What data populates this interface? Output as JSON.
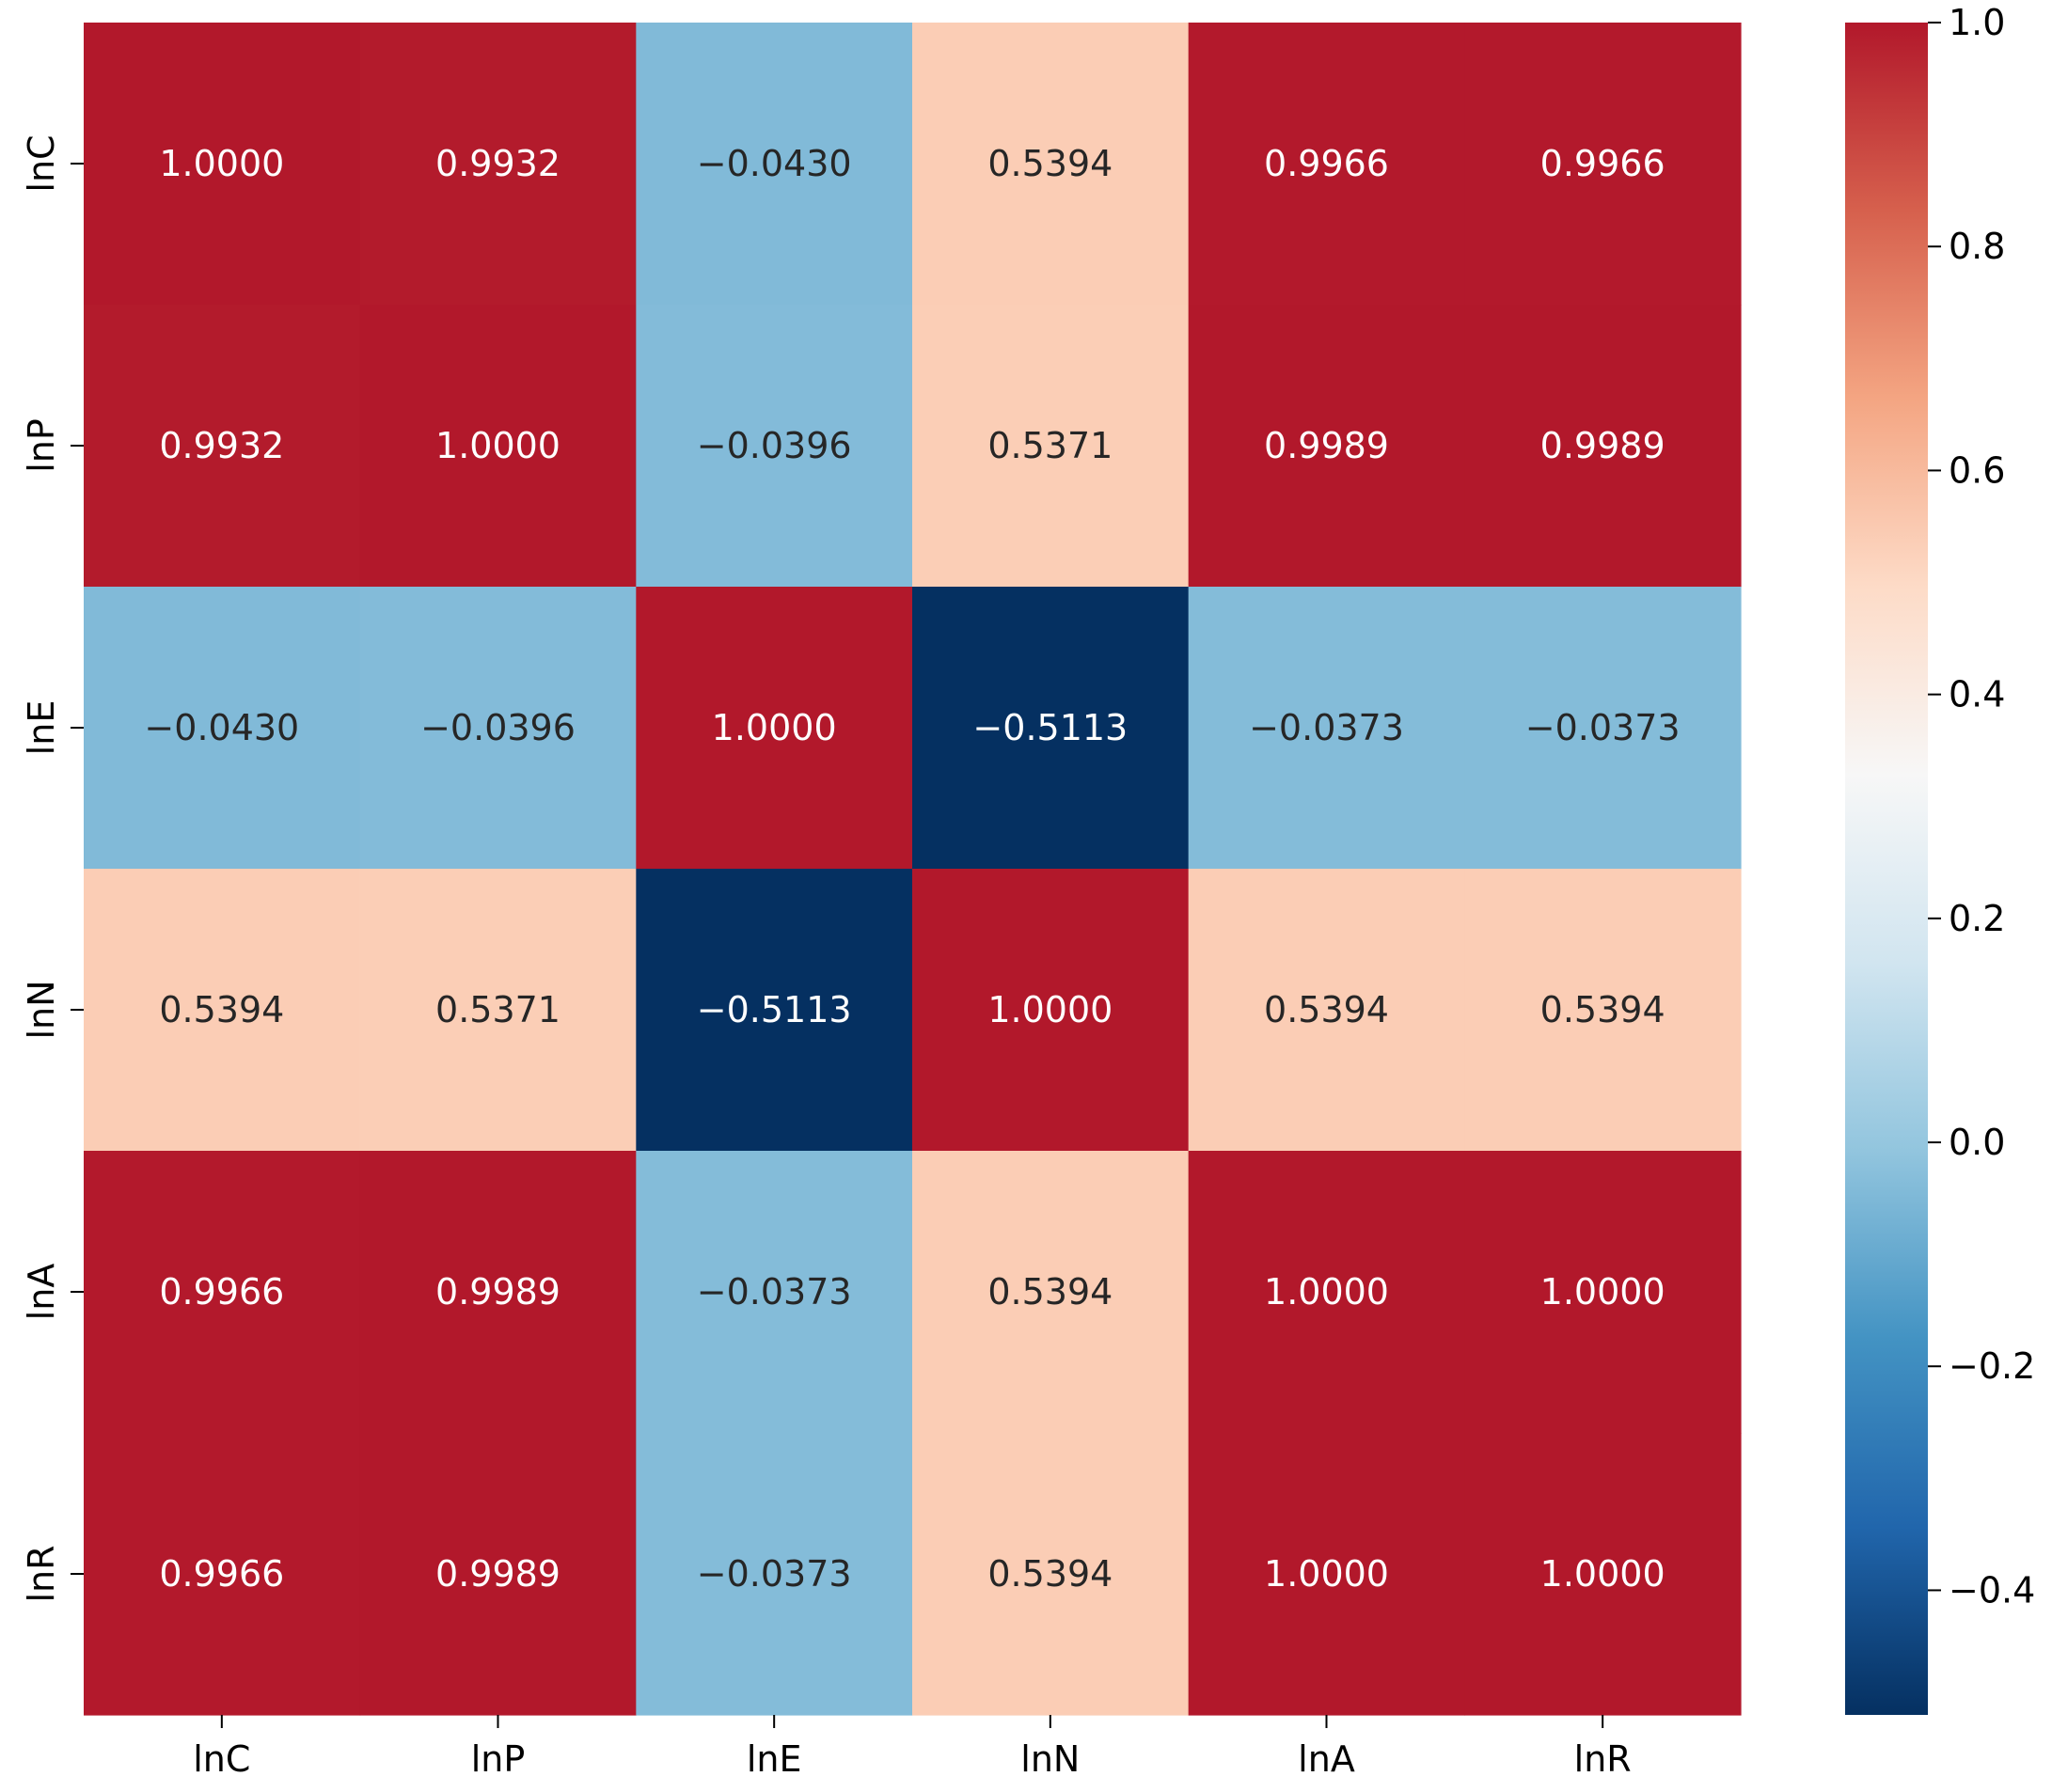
{
  "chart_data": {
    "type": "heatmap",
    "title": "",
    "xlabel": "",
    "ylabel": "",
    "rows": [
      "lnC",
      "lnP",
      "lnE",
      "lnN",
      "lnA",
      "lnR"
    ],
    "columns": [
      "lnC",
      "lnP",
      "lnE",
      "lnN",
      "lnA",
      "lnR"
    ],
    "values": [
      [
        1.0,
        0.9932,
        -0.043,
        0.5394,
        0.9966,
        0.9966
      ],
      [
        0.9932,
        1.0,
        -0.0396,
        0.5371,
        0.9989,
        0.9989
      ],
      [
        -0.043,
        -0.0396,
        1.0,
        -0.5113,
        -0.0373,
        -0.0373
      ],
      [
        0.5394,
        0.5371,
        -0.5113,
        1.0,
        0.5394,
        0.5394
      ],
      [
        0.9966,
        0.9989,
        -0.0373,
        0.5394,
        1.0,
        1.0
      ],
      [
        0.9966,
        0.9989,
        -0.0373,
        0.5394,
        1.0,
        1.0
      ]
    ],
    "cell_labels": [
      [
        "1.0000",
        "0.9932",
        "−0.0430",
        "0.5394",
        "0.9966",
        "0.9966"
      ],
      [
        "0.9932",
        "1.0000",
        "−0.0396",
        "0.5371",
        "0.9989",
        "0.9989"
      ],
      [
        "−0.0430",
        "−0.0396",
        "1.0000",
        "−0.5113",
        "−0.0373",
        "−0.0373"
      ],
      [
        "0.5394",
        "0.5371",
        "−0.5113",
        "1.0000",
        "0.5394",
        "0.5394"
      ],
      [
        "0.9966",
        "0.9989",
        "−0.0373",
        "0.5394",
        "1.0000",
        "1.0000"
      ],
      [
        "0.9966",
        "0.9989",
        "−0.0373",
        "0.5394",
        "1.0000",
        "1.0000"
      ]
    ],
    "colorbar": {
      "range": [
        -0.5113,
        1.0
      ],
      "ticks": [
        1.0,
        0.8,
        0.6,
        0.4,
        0.2,
        0.0,
        -0.2,
        -0.4
      ],
      "tick_labels": [
        "1.0",
        "0.8",
        "0.6",
        "0.4",
        "0.2",
        "0.0",
        "−0.2",
        "−0.4"
      ],
      "colormap": "RdBu_r",
      "color_stops": [
        "#053061",
        "#2166ac",
        "#4393c3",
        "#92c5de",
        "#d1e5f0",
        "#f7f7f7",
        "#fddbc7",
        "#f4a582",
        "#d6604d",
        "#b2182b"
      ]
    },
    "grid": false,
    "legend": "colorbar-right"
  }
}
